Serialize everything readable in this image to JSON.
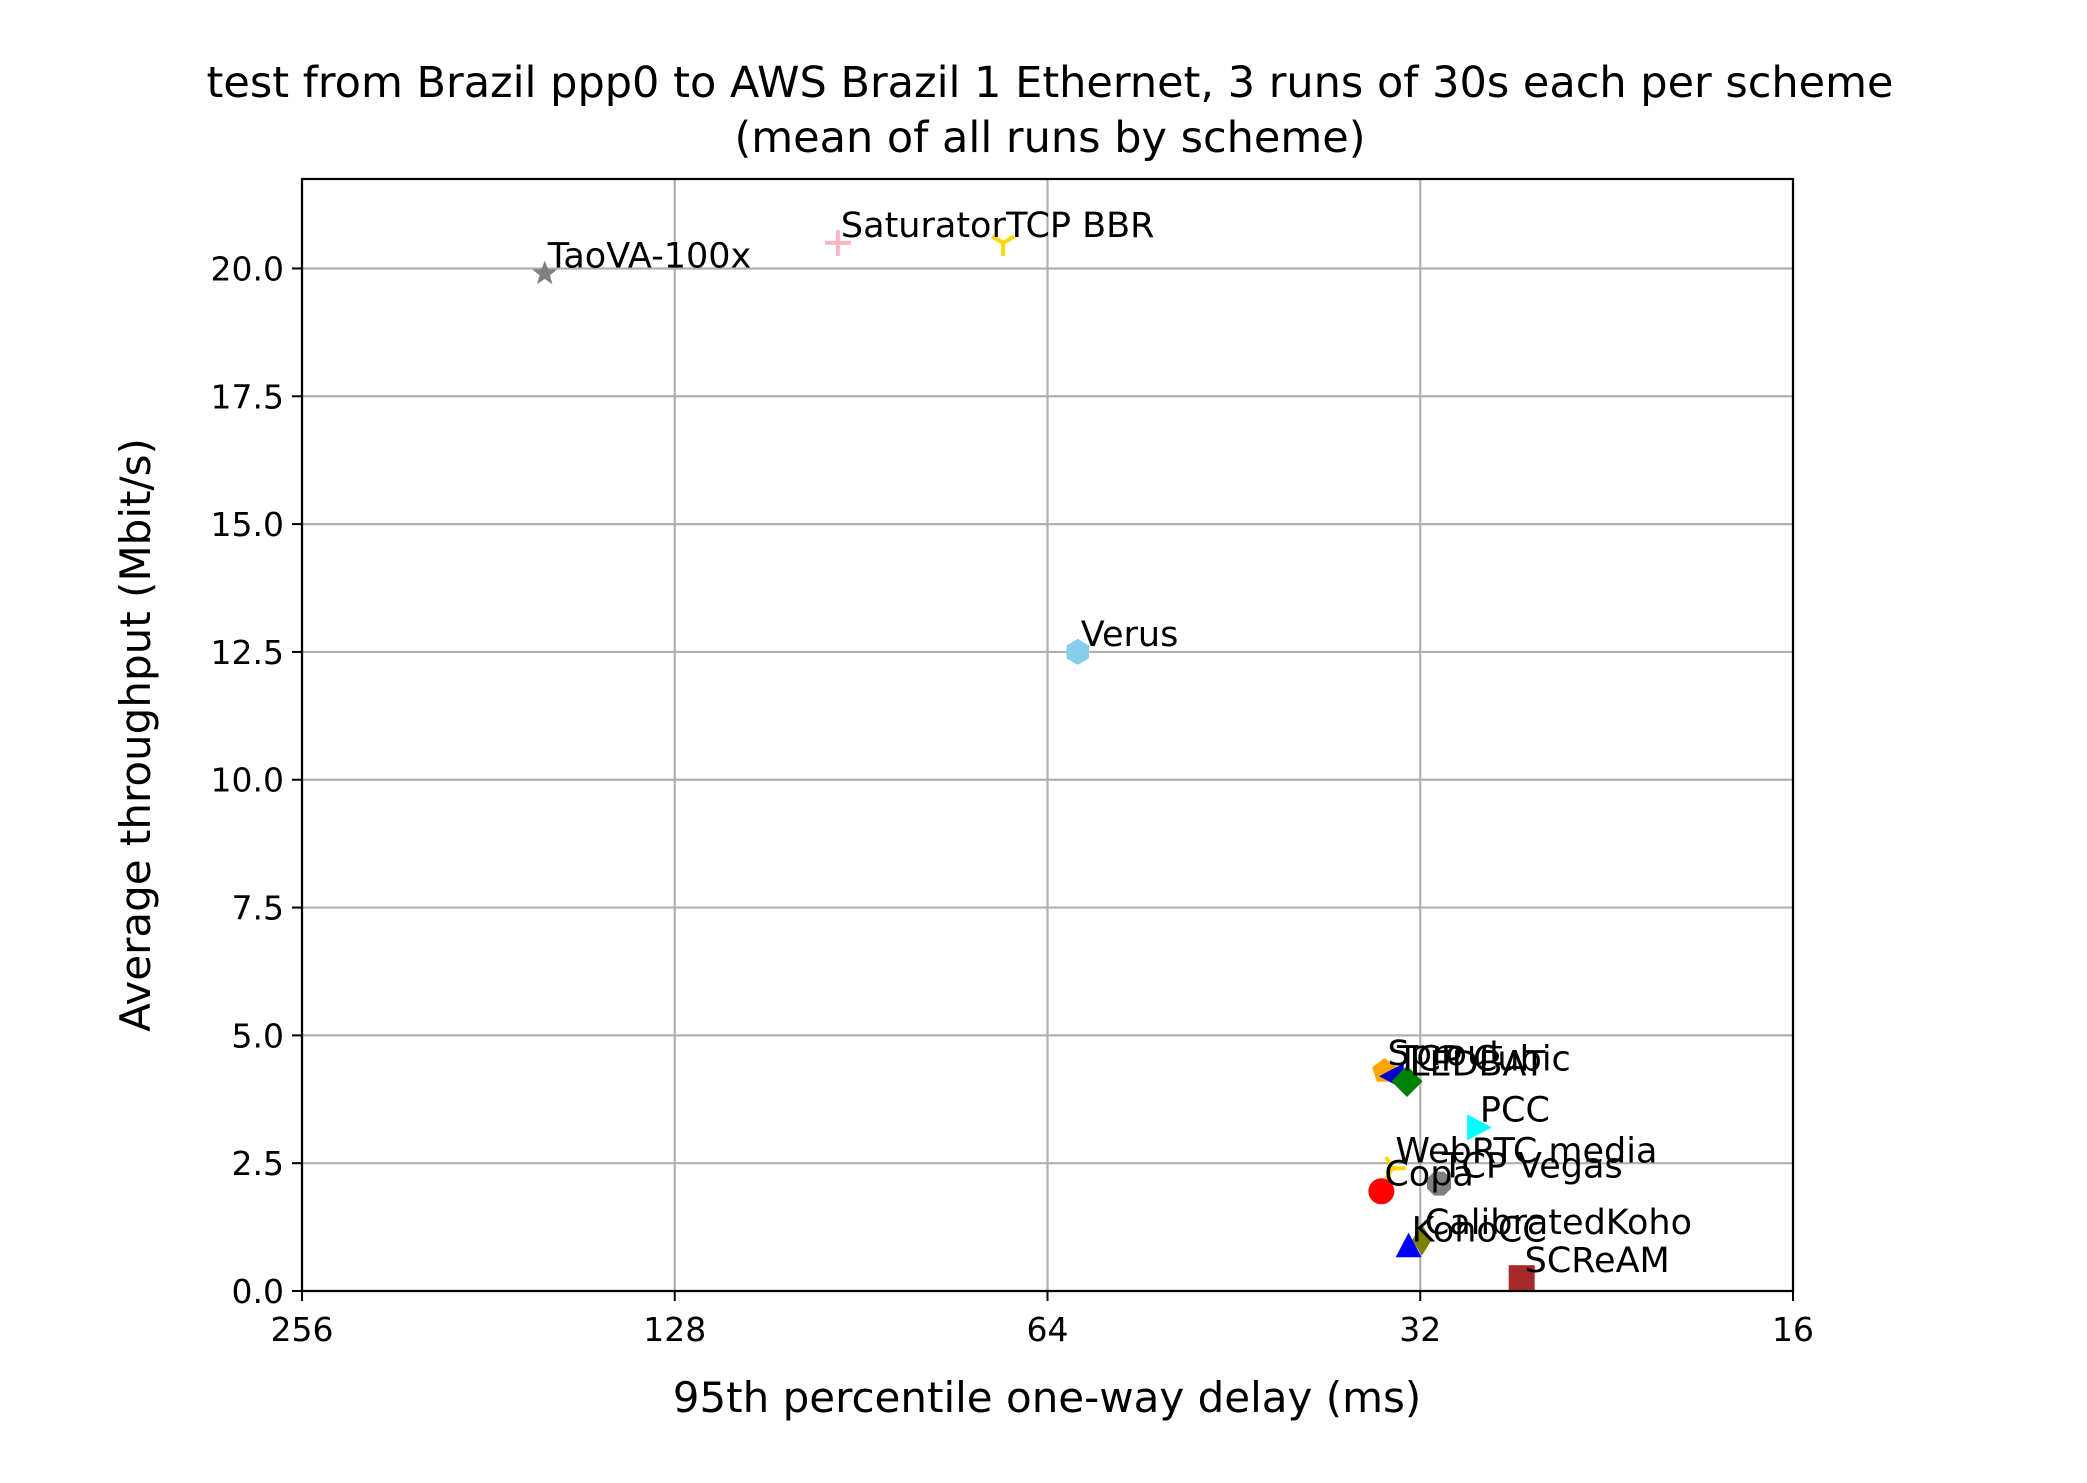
{
  "chart_data": {
    "type": "scatter",
    "title": "test from Brazil ppp0 to AWS Brazil 1 Ethernet, 3 runs of 30s each per scheme",
    "subtitle": "(mean of all runs by scheme)",
    "xlabel": "95th percentile one-way delay (ms)",
    "ylabel": "Average throughput (Mbit/s)",
    "x_scale": "log2-reversed",
    "xlim": [
      256,
      16
    ],
    "ylim": [
      0,
      21.75
    ],
    "x_ticks": [
      256,
      128,
      64,
      32,
      16
    ],
    "x_tick_labels": [
      "256",
      "128",
      "64",
      "32",
      "16"
    ],
    "y_ticks": [
      0,
      2.5,
      5,
      7.5,
      10,
      12.5,
      15,
      17.5,
      20
    ],
    "y_tick_labels": [
      "0.0",
      "2.5",
      "5.0",
      "7.5",
      "10.0",
      "12.5",
      "15.0",
      "17.5",
      "20.0"
    ],
    "grid": true,
    "points": [
      {
        "label": "TaoVA-100x",
        "x": 163,
        "y": 19.9,
        "marker": "star",
        "color": "#808080"
      },
      {
        "label": "Saturator",
        "x": 94.5,
        "y": 20.5,
        "marker": "plus",
        "color": "#ffb6c1"
      },
      {
        "label": "TCP BBR",
        "x": 69.5,
        "y": 20.5,
        "marker": "tri_down",
        "color": "#ffd700"
      },
      {
        "label": "Verus",
        "x": 60.5,
        "y": 12.5,
        "marker": "hexagon",
        "color": "#87ceeb"
      },
      {
        "label": "Sprout",
        "x": 34.2,
        "y": 4.3,
        "marker": "pentagon",
        "color": "#ffa500"
      },
      {
        "label": "TCP Cubic",
        "x": 33.6,
        "y": 4.2,
        "marker": "triangle_left",
        "color": "#0000cd"
      },
      {
        "label": "LEDBAT",
        "x": 32.8,
        "y": 4.1,
        "marker": "diamond",
        "color": "#008000"
      },
      {
        "label": "PCC",
        "x": 28.8,
        "y": 3.2,
        "marker": "triangle_right",
        "color": "#00ffff"
      },
      {
        "label": "WebRTC media",
        "x": 33.7,
        "y": 2.4,
        "marker": "tri_right",
        "color": "#ffd700"
      },
      {
        "label": "TCP Vegas",
        "x": 30.9,
        "y": 2.1,
        "marker": "octagon",
        "color": "#808080"
      },
      {
        "label": "Copa",
        "x": 34.4,
        "y": 1.95,
        "marker": "circle",
        "color": "#ff0000"
      },
      {
        "label": "CalibratedKoho",
        "x": 31.9,
        "y": 1.0,
        "marker": "thin_diamond",
        "color": "#808000"
      },
      {
        "label": "KohoCC",
        "x": 32.7,
        "y": 0.85,
        "marker": "triangle_up",
        "color": "#0000ff"
      },
      {
        "label": "SCReAM",
        "x": 26.5,
        "y": 0.25,
        "marker": "square",
        "color": "#a52a2a"
      }
    ]
  }
}
